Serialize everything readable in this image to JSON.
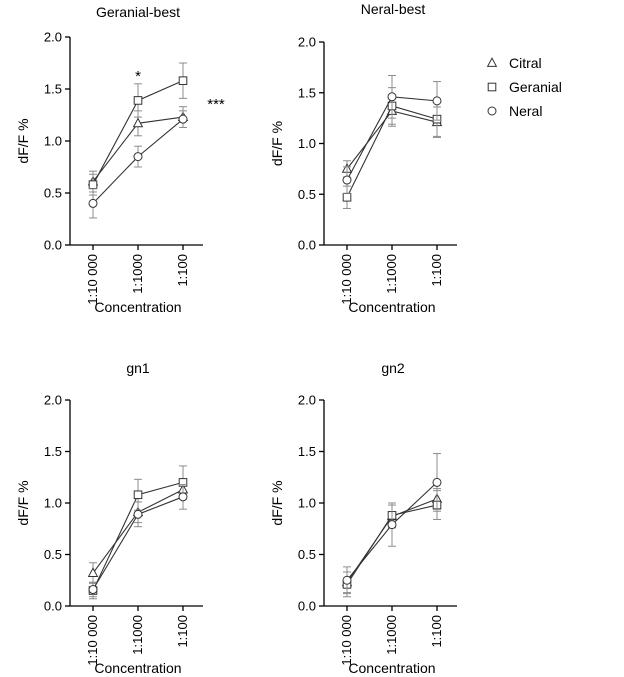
{
  "legend": [
    {
      "name": "Citral",
      "marker": "triangle"
    },
    {
      "name": "Geranial",
      "marker": "square"
    },
    {
      "name": "Neral",
      "marker": "circle"
    }
  ],
  "colors": {
    "line": "#333333",
    "error_bar": "#8c8c8c",
    "axis": "#000000"
  },
  "chart_data": [
    {
      "type": "line",
      "title": "Geranial-best",
      "xlabel": "Concentration",
      "ylabel": "dF/F %",
      "categories": [
        "1:10 000",
        "1:1000",
        "1:100"
      ],
      "ylim": [
        0,
        2.0
      ],
      "yticks": [
        "0.0",
        "0.5",
        "1.0",
        "1.5",
        "2.0"
      ],
      "series": [
        {
          "name": "Citral",
          "values": [
            0.61,
            1.17,
            1.23
          ],
          "errors": [
            0.1,
            0.12,
            0.1
          ]
        },
        {
          "name": "Geranial",
          "values": [
            0.58,
            1.39,
            1.58
          ],
          "errors": [
            0.1,
            0.16,
            0.17
          ]
        },
        {
          "name": "Neral",
          "values": [
            0.4,
            0.85,
            1.21
          ],
          "errors": [
            0.14,
            0.1,
            0.08
          ]
        }
      ],
      "annotations": [
        {
          "text": "*",
          "category": "1:1000"
        },
        {
          "text": "***",
          "category": "1:100"
        }
      ]
    },
    {
      "type": "line",
      "title": "Neral-best",
      "xlabel": "Concentration",
      "ylabel": "dF/F %",
      "categories": [
        "1:10 000",
        "1:1000",
        "1:100"
      ],
      "ylim": [
        0,
        2.0
      ],
      "yticks": [
        "0.0",
        "0.5",
        "1.0",
        "1.5",
        "2.0"
      ],
      "series": [
        {
          "name": "Citral",
          "values": [
            0.75,
            1.32,
            1.21
          ],
          "errors": [
            0.08,
            0.15,
            0.15
          ]
        },
        {
          "name": "Geranial",
          "values": [
            0.47,
            1.37,
            1.24
          ],
          "errors": [
            0.11,
            0.18,
            0.17
          ]
        },
        {
          "name": "Neral",
          "values": [
            0.64,
            1.46,
            1.42
          ],
          "errors": [
            0.13,
            0.21,
            0.19
          ]
        }
      ],
      "annotations": []
    },
    {
      "type": "line",
      "title": "gn1",
      "xlabel": "Concentration",
      "ylabel": "dF/F %",
      "categories": [
        "1:10 000",
        "1:1000",
        "1:100"
      ],
      "ylim": [
        0,
        2.0
      ],
      "yticks": [
        "0.0",
        "0.5",
        "1.0",
        "1.5",
        "2.0"
      ],
      "series": [
        {
          "name": "Citral",
          "values": [
            0.32,
            0.91,
            1.13
          ],
          "errors": [
            0.1,
            0.1,
            0.09
          ]
        },
        {
          "name": "Geranial",
          "values": [
            0.15,
            1.08,
            1.2
          ],
          "errors": [
            0.08,
            0.15,
            0.16
          ]
        },
        {
          "name": "Neral",
          "values": [
            0.16,
            0.89,
            1.06
          ],
          "errors": [
            0.07,
            0.12,
            0.12
          ]
        }
      ],
      "annotations": []
    },
    {
      "type": "line",
      "title": "gn2",
      "xlabel": "Concentration",
      "ylabel": "dF/F %",
      "categories": [
        "1:10 000",
        "1:1000",
        "1:100"
      ],
      "ylim": [
        0,
        2.0
      ],
      "yticks": [
        "0.0",
        "0.5",
        "1.0",
        "1.5",
        "2.0"
      ],
      "series": [
        {
          "name": "Citral",
          "values": [
            0.23,
            0.87,
            1.04
          ],
          "errors": [
            0.1,
            0.11,
            0.1
          ]
        },
        {
          "name": "Geranial",
          "values": [
            0.21,
            0.88,
            0.98
          ],
          "errors": [
            0.12,
            0.12,
            0.14
          ]
        },
        {
          "name": "Neral",
          "values": [
            0.25,
            0.79,
            1.2
          ],
          "errors": [
            0.13,
            0.21,
            0.28
          ]
        }
      ],
      "annotations": []
    }
  ]
}
